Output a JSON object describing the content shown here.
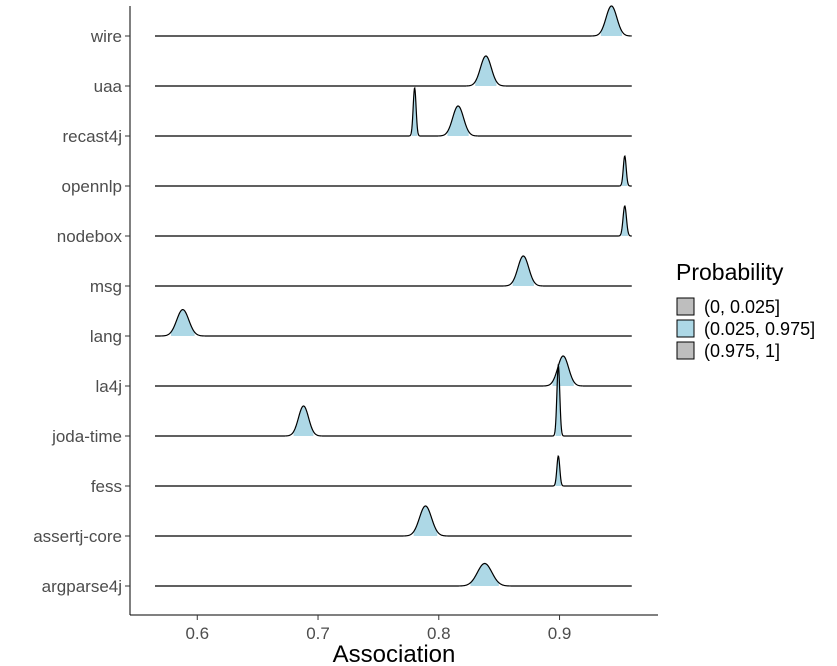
{
  "chart_data": {
    "type": "ridgeline",
    "title": "",
    "xlabel": "Association",
    "ylabel": "",
    "xlim": [
      0.565,
      0.96
    ],
    "x_ticks": [
      "0.6",
      "0.7",
      "0.8",
      "0.9"
    ],
    "legend": {
      "title": "Probability",
      "position": "right",
      "items": [
        {
          "label": "(0, 0.025]",
          "color": "#bebebe"
        },
        {
          "label": "(0.025, 0.975]",
          "color": "#add8e6"
        },
        {
          "label": "(0.975, 1]",
          "color": "#bebebe"
        }
      ]
    },
    "series": [
      {
        "name": "wire",
        "peaks": [
          {
            "mean": 0.943,
            "sd": 0.0045,
            "height": 1.0
          }
        ]
      },
      {
        "name": "uaa",
        "peaks": [
          {
            "mean": 0.839,
            "sd": 0.0045,
            "height": 1.0
          }
        ]
      },
      {
        "name": "recast4j",
        "peaks": [
          {
            "mean": 0.78,
            "sd": 0.0012,
            "height": 1.6
          },
          {
            "mean": 0.816,
            "sd": 0.0045,
            "height": 1.0
          }
        ]
      },
      {
        "name": "opennlp",
        "peaks": [
          {
            "mean": 0.954,
            "sd": 0.0012,
            "height": 1.0
          }
        ]
      },
      {
        "name": "nodebox",
        "peaks": [
          {
            "mean": 0.954,
            "sd": 0.0014,
            "height": 1.0
          }
        ]
      },
      {
        "name": "msg",
        "peaks": [
          {
            "mean": 0.87,
            "sd": 0.0045,
            "height": 1.0
          }
        ]
      },
      {
        "name": "lang",
        "peaks": [
          {
            "mean": 0.588,
            "sd": 0.005,
            "height": 0.88
          }
        ]
      },
      {
        "name": "la4j",
        "peaks": [
          {
            "mean": 0.903,
            "sd": 0.0045,
            "height": 1.0
          }
        ]
      },
      {
        "name": "joda-time",
        "peaks": [
          {
            "mean": 0.688,
            "sd": 0.0042,
            "height": 1.0
          },
          {
            "mean": 0.899,
            "sd": 0.0012,
            "height": 2.35
          }
        ]
      },
      {
        "name": "fess",
        "peaks": [
          {
            "mean": 0.899,
            "sd": 0.0012,
            "height": 1.0
          }
        ]
      },
      {
        "name": "assertj-core",
        "peaks": [
          {
            "mean": 0.789,
            "sd": 0.005,
            "height": 1.0
          }
        ]
      },
      {
        "name": "argparse4j",
        "peaks": [
          {
            "mean": 0.838,
            "sd": 0.006,
            "height": 0.75
          }
        ]
      }
    ],
    "grid": false
  }
}
